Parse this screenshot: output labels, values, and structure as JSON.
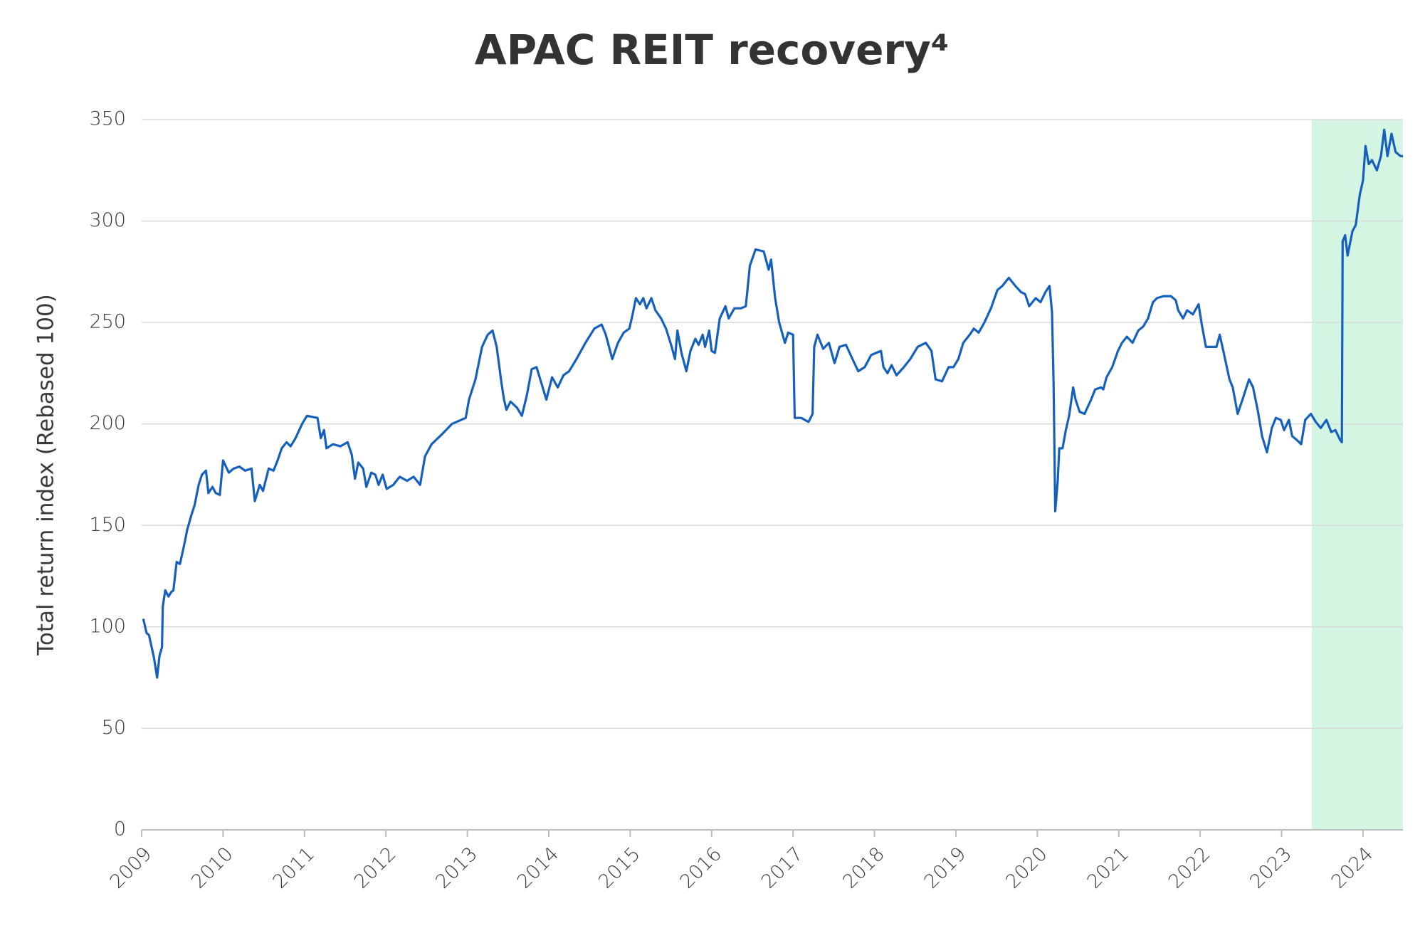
{
  "chart_data": {
    "type": "line",
    "title": "APAC REIT recovery⁴",
    "y_label": "Total return index (Rebased 100)",
    "color": "#1560bd",
    "grid": true,
    "highlight": {
      "x": [
        2023.37,
        2024.49
      ],
      "color": "#d3f5e1"
    },
    "xlim": [
      2009,
      2024.49
    ],
    "xticks": [
      2009,
      2010,
      2011,
      2012,
      2013,
      2014,
      2015,
      2016,
      2017,
      2018,
      2019,
      2020,
      2021,
      2022,
      2023,
      2024
    ],
    "ylim": [
      0,
      350
    ],
    "yticks": [
      0,
      50,
      100,
      150,
      200,
      250,
      300,
      350
    ],
    "x": [
      2009.02,
      2009.06,
      2009.09,
      2009.15,
      2009.19,
      2009.22,
      2009.25,
      2009.26,
      2009.29,
      2009.33,
      2009.36,
      2009.39,
      2009.43,
      2009.47,
      2009.52,
      2009.56,
      2009.61,
      2009.65,
      2009.7,
      2009.74,
      2009.79,
      2009.82,
      2009.87,
      2009.91,
      2009.96,
      2010.0,
      2010.07,
      2010.13,
      2010.2,
      2010.27,
      2010.35,
      2010.39,
      2010.45,
      2010.49,
      2010.56,
      2010.62,
      2010.67,
      2010.72,
      2010.78,
      2010.83,
      2010.89,
      2010.97,
      2011.03,
      2011.16,
      2011.2,
      2011.24,
      2011.27,
      2011.35,
      2011.44,
      2011.53,
      2011.58,
      2011.62,
      2011.66,
      2011.72,
      2011.76,
      2011.82,
      2011.87,
      2011.91,
      2011.96,
      2012.01,
      2012.09,
      2012.17,
      2012.26,
      2012.34,
      2012.42,
      2012.48,
      2012.56,
      2012.69,
      2012.81,
      2012.98,
      2013.02,
      2013.1,
      2013.18,
      2013.25,
      2013.31,
      2013.36,
      2013.42,
      2013.45,
      2013.48,
      2013.53,
      2013.61,
      2013.67,
      2013.73,
      2013.79,
      2013.85,
      2013.91,
      2013.97,
      2014.04,
      2014.11,
      2014.18,
      2014.25,
      2014.34,
      2014.45,
      2014.56,
      2014.65,
      2014.7,
      2014.78,
      2014.85,
      2014.92,
      2014.99,
      2015.03,
      2015.07,
      2015.12,
      2015.16,
      2015.2,
      2015.26,
      2015.31,
      2015.38,
      2015.44,
      2015.51,
      2015.55,
      2015.58,
      2015.63,
      2015.69,
      2015.74,
      2015.8,
      2015.84,
      2015.89,
      2015.92,
      2015.97,
      2016.0,
      2016.04,
      2016.1,
      2016.17,
      2016.21,
      2016.28,
      2016.36,
      2016.42,
      2016.47,
      2016.54,
      2016.64,
      2016.7,
      2016.73,
      2016.78,
      2016.83,
      2016.9,
      2016.94,
      2017.0,
      2017.02,
      2017.1,
      2017.19,
      2017.24,
      2017.26,
      2017.3,
      2017.37,
      2017.44,
      2017.51,
      2017.57,
      2017.65,
      2017.73,
      2017.8,
      2017.88,
      2017.96,
      2018.02,
      2018.08,
      2018.11,
      2018.16,
      2018.21,
      2018.27,
      2018.36,
      2018.44,
      2018.53,
      2018.63,
      2018.7,
      2018.75,
      2018.83,
      2018.91,
      2018.97,
      2019.03,
      2019.09,
      2019.17,
      2019.22,
      2019.28,
      2019.35,
      2019.43,
      2019.51,
      2019.57,
      2019.65,
      2019.73,
      2019.8,
      2019.85,
      2019.9,
      2019.98,
      2020.04,
      2020.1,
      2020.15,
      2020.18,
      2020.2,
      2020.22,
      2020.25,
      2020.27,
      2020.31,
      2020.35,
      2020.39,
      2020.44,
      2020.47,
      2020.52,
      2020.58,
      2020.66,
      2020.71,
      2020.78,
      2020.81,
      2020.85,
      2020.92,
      2020.99,
      2021.04,
      2021.1,
      2021.17,
      2021.24,
      2021.3,
      2021.36,
      2021.42,
      2021.47,
      2021.55,
      2021.64,
      2021.7,
      2021.73,
      2021.79,
      2021.84,
      2021.91,
      2021.98,
      2022.02,
      2022.07,
      2022.12,
      2022.2,
      2022.24,
      2022.29,
      2022.36,
      2022.4,
      2022.46,
      2022.52,
      2022.6,
      2022.65,
      2022.71,
      2022.76,
      2022.82,
      2022.88,
      2022.93,
      2022.99,
      2023.03,
      2023.09,
      2023.13,
      2023.19,
      2023.24,
      2023.29,
      2023.36,
      2023.42,
      2023.48,
      2023.55,
      2023.61,
      2023.66,
      2023.72,
      2023.74,
      2023.75,
      2023.78,
      2023.81,
      2023.87,
      2023.91,
      2023.96,
      2024.0,
      2024.03,
      2024.07,
      2024.11,
      2024.17,
      2024.22,
      2024.26,
      2024.3,
      2024.35,
      2024.4,
      2024.46,
      2024.49
    ],
    "values": [
      104,
      97,
      96,
      85,
      75,
      86,
      90,
      110,
      118,
      115,
      117,
      118,
      132,
      131,
      140,
      148,
      155,
      160,
      170,
      175,
      177,
      166,
      169,
      166,
      165,
      182,
      176,
      178,
      179,
      177,
      178,
      162,
      170,
      167,
      178,
      177,
      182,
      188,
      191,
      189,
      193,
      200,
      204,
      203,
      193,
      197,
      188,
      190,
      189,
      191,
      185,
      173,
      181,
      178,
      169,
      176,
      175,
      170,
      175,
      168,
      170,
      174,
      172,
      174,
      170,
      184,
      190,
      195,
      200,
      203,
      212,
      222,
      238,
      244,
      246,
      238,
      220,
      212,
      207,
      211,
      208,
      204,
      214,
      227,
      228,
      220,
      212,
      223,
      218,
      224,
      226,
      232,
      240,
      247,
      249,
      244,
      232,
      240,
      245,
      247,
      254,
      262,
      259,
      262,
      257,
      262,
      256,
      252,
      247,
      238,
      232,
      246,
      235,
      226,
      236,
      242,
      239,
      244,
      238,
      246,
      236,
      235,
      252,
      258,
      252,
      257,
      257,
      258,
      278,
      286,
      285,
      276,
      281,
      262,
      250,
      240,
      245,
      244,
      203,
      203,
      201,
      205,
      238,
      244,
      237,
      240,
      230,
      238,
      239,
      232,
      226,
      228,
      234,
      235,
      236,
      228,
      225,
      229,
      224,
      228,
      232,
      238,
      240,
      236,
      222,
      221,
      228,
      228,
      232,
      240,
      244,
      247,
      245,
      250,
      257,
      266,
      268,
      272,
      268,
      265,
      264,
      258,
      262,
      260,
      265,
      268,
      255,
      220,
      157,
      172,
      188,
      188,
      197,
      204,
      218,
      212,
      206,
      205,
      212,
      217,
      218,
      217,
      223,
      228,
      236,
      240,
      243,
      240,
      246,
      248,
      252,
      260,
      262,
      263,
      263,
      261,
      256,
      252,
      256,
      254,
      259,
      249,
      238,
      238,
      238,
      244,
      235,
      222,
      218,
      205,
      212,
      222,
      218,
      206,
      194,
      186,
      198,
      203,
      202,
      197,
      202,
      194,
      192,
      190,
      202,
      205,
      201,
      198,
      202,
      196,
      197,
      192,
      191,
      290,
      293,
      283,
      295,
      298,
      313,
      320,
      337,
      328,
      330,
      325,
      332,
      345,
      332,
      343,
      334,
      332,
      332
    ]
  }
}
